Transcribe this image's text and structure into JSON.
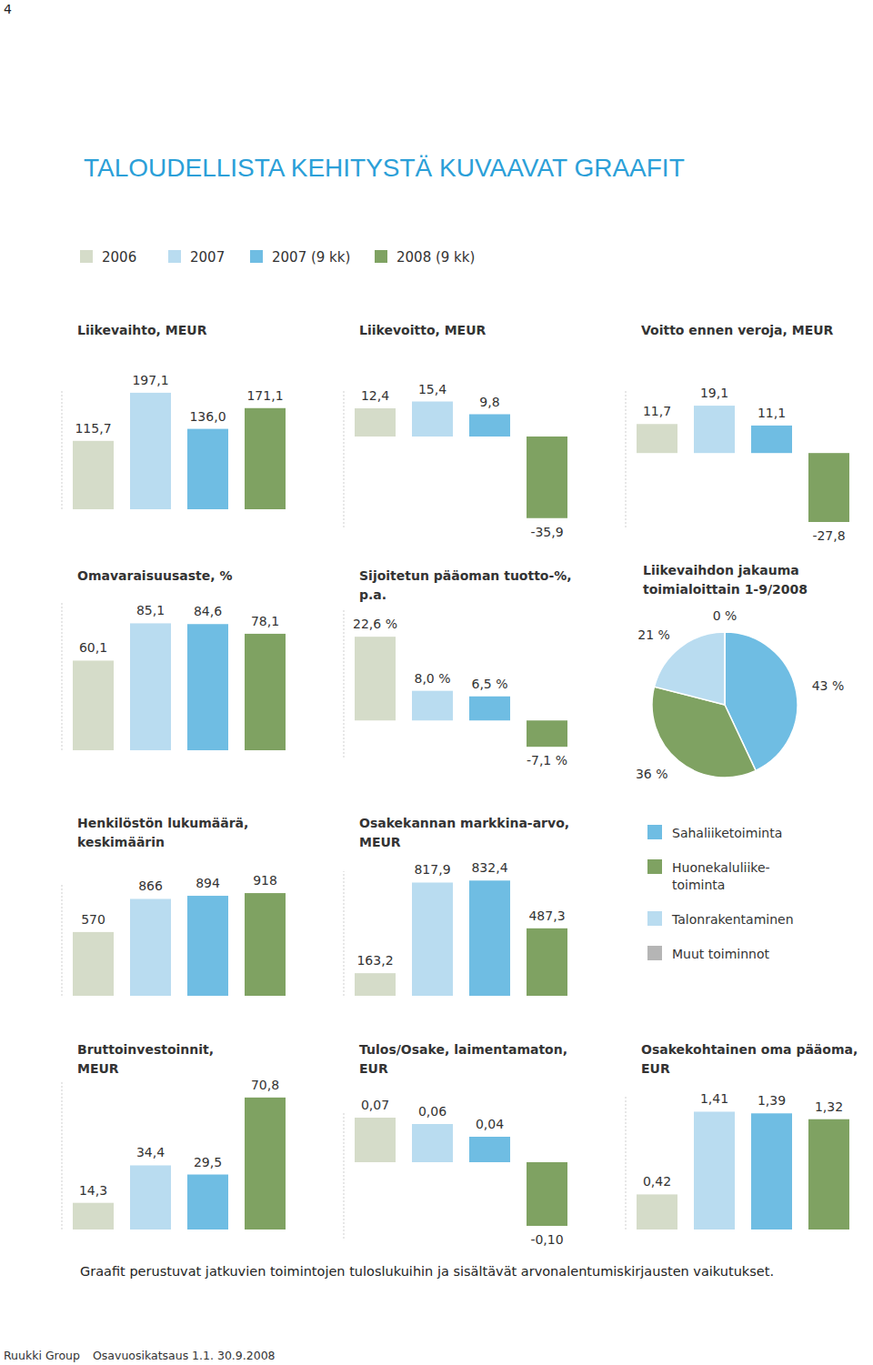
{
  "page_number": "4",
  "title": "TALOUDELLISTA KEHITYSTÄ KUVAAVAT GRAAFIT",
  "legend": [
    {
      "name": "2006",
      "color": "#d5dcc9"
    },
    {
      "name": "2007",
      "color": "#b9dcf0"
    },
    {
      "name": "2007 (9 kk)",
      "color": "#6fbde3"
    },
    {
      "name": "2008 (9 kk)",
      "color": "#7fa262"
    }
  ],
  "chart_data": [
    {
      "type": "bar",
      "title": "Liikevaihto, MEUR",
      "categories": [
        null,
        null,
        null,
        null
      ],
      "values": [
        115.7,
        197.1,
        136.0,
        171.1
      ],
      "value_labels": [
        "115,7",
        "197,1",
        "136,0",
        "171,1"
      ],
      "colors": [
        "#d5dcc9",
        "#b9dcf0",
        "#6fbde3",
        "#7fa262"
      ],
      "ylim": [
        0,
        200
      ],
      "yticks": [],
      "tick_labels": false,
      "data_labels": true
    },
    {
      "type": "bar",
      "title": "Liikevoitto, MEUR",
      "categories": [
        null,
        null,
        null,
        null
      ],
      "values": [
        12.4,
        15.4,
        9.8,
        -35.9
      ],
      "value_labels": [
        "12,4",
        "15,4",
        "9,8",
        "-35,9"
      ],
      "colors": [
        "#d5dcc9",
        "#b9dcf0",
        "#6fbde3",
        "#7fa262"
      ],
      "ylim": [
        -40,
        20
      ],
      "yticks": [],
      "tick_labels": false,
      "data_labels": true
    },
    {
      "type": "bar",
      "title": "Voitto ennen veroja, MEUR",
      "categories": [
        null,
        null,
        null,
        null
      ],
      "values": [
        11.7,
        19.1,
        11.1,
        -27.8
      ],
      "value_labels": [
        "11,7",
        "19,1",
        "11,1",
        "-27,8"
      ],
      "colors": [
        "#d5dcc9",
        "#b9dcf0",
        "#6fbde3",
        "#7fa262"
      ],
      "ylim": [
        -30,
        25
      ],
      "yticks": [],
      "tick_labels": false,
      "data_labels": true
    },
    {
      "type": "bar",
      "title": "Omavaraisuusaste, %",
      "categories": [
        null,
        null,
        null,
        null
      ],
      "values": [
        60.1,
        85.1,
        84.6,
        78.1
      ],
      "value_labels": [
        "60,1",
        "85,1",
        "84,6",
        "78,1"
      ],
      "colors": [
        "#d5dcc9",
        "#b9dcf0",
        "#6fbde3",
        "#7fa262"
      ],
      "ylim": [
        0,
        100
      ],
      "yticks": [],
      "tick_labels": false,
      "data_labels": true
    },
    {
      "type": "bar",
      "title": "Sijoitetun pääoman tuotto-%,\np.a.",
      "categories": [
        null,
        null,
        null,
        null
      ],
      "values": [
        22.6,
        8.0,
        6.5,
        -7.1
      ],
      "value_labels": [
        "22,6 %",
        "8,0 %",
        "6,5 %",
        "-7,1 %"
      ],
      "colors": [
        "#d5dcc9",
        "#b9dcf0",
        "#6fbde3",
        "#7fa262"
      ],
      "ylim": [
        -10,
        30
      ],
      "yticks": [],
      "tick_labels": false,
      "data_labels": true
    },
    {
      "type": "pie",
      "title": "Liikevaihdon jakauma\ntoimialoittain 1-9/2008",
      "categories": [
        "Sahaliiketoiminta",
        "Huonekaluliike-\ntoiminta",
        "Talonrakentaminen",
        "Muut toiminnot"
      ],
      "values": [
        43,
        36,
        21,
        0
      ],
      "value_labels": [
        "43 %",
        "36 %",
        "21 %",
        "0 %"
      ],
      "colors": [
        "#6fbde3",
        "#7fa262",
        "#b9dcf0",
        "#b5b5b5"
      ],
      "data_labels": true,
      "legend": "bottom"
    },
    {
      "type": "bar",
      "title": "Henkilöstön lukumäärä,\nkeskimäärin",
      "categories": [
        null,
        null,
        null,
        null
      ],
      "values": [
        570,
        866,
        894,
        918
      ],
      "colors": [
        "#d5dcc9",
        "#b9dcf0",
        "#6fbde3",
        "#7fa262"
      ],
      "ylim": [
        0,
        1000
      ],
      "yticks": [],
      "tick_labels": false,
      "data_labels": true
    },
    {
      "type": "bar",
      "title": "Osakekannan markkina-arvo,\nMEUR",
      "categories": [
        null,
        null,
        null,
        null
      ],
      "values": [
        163.2,
        817.9,
        832.4,
        487.3
      ],
      "value_labels": [
        "163,2",
        "817,9",
        "832,4",
        "487,3"
      ],
      "colors": [
        "#d5dcc9",
        "#b9dcf0",
        "#6fbde3",
        "#7fa262"
      ],
      "ylim": [
        0,
        900
      ],
      "yticks": [],
      "tick_labels": false,
      "data_labels": true
    },
    {
      "type": "bar",
      "title": "Bruttoinvestoinnit,\nMEUR",
      "categories": [
        null,
        null,
        null,
        null
      ],
      "values": [
        14.3,
        34.4,
        29.5,
        70.8
      ],
      "value_labels": [
        "14,3",
        "34,4",
        "29,5",
        "70,8"
      ],
      "colors": [
        "#d5dcc9",
        "#b9dcf0",
        "#6fbde3",
        "#7fa262"
      ],
      "ylim": [
        0,
        80
      ],
      "yticks": [],
      "tick_labels": false,
      "data_labels": true
    },
    {
      "type": "bar",
      "title": "Tulos/Osake, laimentamaton,\nEUR",
      "categories": [
        null,
        null,
        null,
        null
      ],
      "values": [
        0.07,
        0.06,
        0.04,
        -0.1
      ],
      "value_labels": [
        "0,07",
        "0,06",
        "0,04",
        "-0,10"
      ],
      "colors": [
        "#d5dcc9",
        "#b9dcf0",
        "#6fbde3",
        "#7fa262"
      ],
      "ylim": [
        -0.12,
        0.08
      ],
      "yticks": [],
      "tick_labels": false,
      "data_labels": true
    },
    {
      "type": "bar",
      "title": "Osakekohtainen oma pääoma,\nEUR",
      "categories": [
        null,
        null,
        null,
        null
      ],
      "values": [
        0.42,
        1.41,
        1.39,
        1.32
      ],
      "value_labels": [
        "0,42",
        "1,41",
        "1,39",
        "1,32"
      ],
      "colors": [
        "#d5dcc9",
        "#b9dcf0",
        "#6fbde3",
        "#7fa262"
      ],
      "ylim": [
        0,
        1.6
      ],
      "yticks": [],
      "tick_labels": false,
      "data_labels": true
    }
  ],
  "footnote": "Graafit perustuvat jatkuvien toimintojen tuloslukuihin ja sisältävät arvonalentumiskirjausten vaikutukset.",
  "footer": [
    "Ruukki Group",
    "Osavuosikatsaus 1.1. 30.9.2008"
  ]
}
